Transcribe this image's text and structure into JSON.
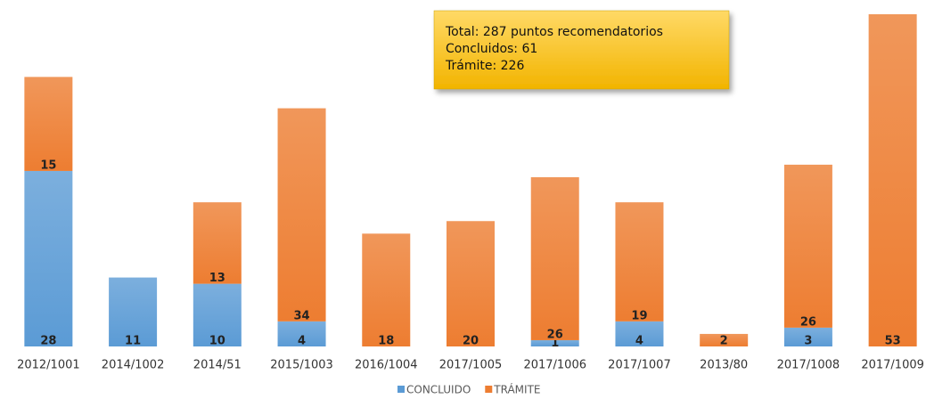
{
  "chart_data": {
    "type": "stacked_bar",
    "annotation": [
      "Total: 287 puntos recomendatorios",
      "Concluidos: 61",
      "Trámite: 226"
    ],
    "categories": [
      "2012/1001",
      "2014/1002",
      "2014/51",
      "2015/1003",
      "2016/1004",
      "2017/1005",
      "2017/1006",
      "2017/1007",
      "2013/80",
      "2017/1008",
      "2017/1009"
    ],
    "series": [
      {
        "name": "CONCLUIDO",
        "color": "#5b9bd5",
        "values": [
          28,
          11,
          10,
          4,
          null,
          null,
          1,
          4,
          null,
          3,
          null
        ]
      },
      {
        "name": "TRÁMITE",
        "color": "#ed7d31",
        "values": [
          15,
          null,
          13,
          34,
          18,
          20,
          26,
          19,
          2,
          26,
          53
        ]
      }
    ],
    "legend": "bottom"
  }
}
